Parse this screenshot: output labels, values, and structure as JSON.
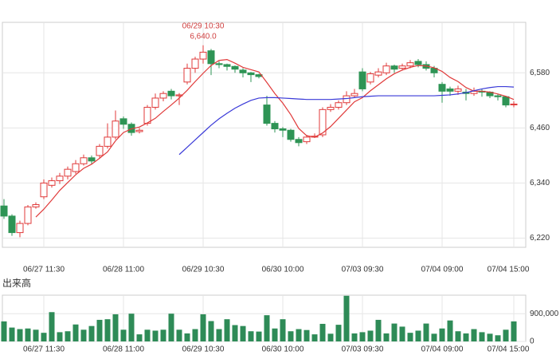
{
  "chart_data": [
    {
      "type": "candlestick",
      "categories": [
        null,
        null,
        null,
        null,
        null,
        "06/27 11:30",
        null,
        null,
        null,
        null,
        null,
        null,
        null,
        null,
        null,
        "06/28 11:00",
        null,
        null,
        null,
        null,
        null,
        null,
        null,
        null,
        null,
        "06/29 10:30",
        null,
        null,
        null,
        null,
        null,
        null,
        null,
        null,
        null,
        "06/30 10:00",
        null,
        null,
        null,
        null,
        null,
        null,
        null,
        null,
        null,
        "07/03 09:30",
        null,
        null,
        null,
        null,
        null,
        null,
        null,
        null,
        null,
        "07/04 09:00",
        null,
        null,
        null,
        null,
        null,
        null,
        null,
        null,
        "07/04 15:00"
      ],
      "open": [
        6290,
        6268,
        6232,
        6252,
        6288,
        6310,
        6335,
        6345,
        6355,
        6365,
        6382,
        6395,
        6400,
        6420,
        6440,
        6480,
        6468,
        6452,
        6470,
        6505,
        6525,
        6540,
        6530,
        6560,
        6590,
        6610,
        6628,
        6600,
        6598,
        6594,
        6586,
        6580,
        6576,
        6510,
        6470,
        6458,
        6455,
        6435,
        6430,
        6440,
        6445,
        6500,
        6505,
        6515,
        6530,
        6582,
        6560,
        6575,
        6580,
        6595,
        6590,
        6595,
        6605,
        6598,
        6590,
        6555,
        6545,
        6540,
        6538,
        6535,
        6540,
        6538,
        6530,
        6528,
        6512
      ],
      "high": [
        6305,
        6272,
        6258,
        6292,
        6298,
        6348,
        6352,
        6362,
        6376,
        6390,
        6402,
        6400,
        6425,
        6470,
        6498,
        6485,
        6472,
        6460,
        6510,
        6535,
        6540,
        6545,
        6536,
        6600,
        6615,
        6640,
        6632,
        6605,
        6600,
        6596,
        6590,
        6582,
        6578,
        6530,
        6475,
        6462,
        6458,
        6440,
        6445,
        6448,
        6505,
        6512,
        6520,
        6540,
        6545,
        6590,
        6582,
        6590,
        6602,
        6598,
        6600,
        6608,
        6610,
        6605,
        6595,
        6560,
        6550,
        6552,
        6545,
        6548,
        6545,
        6540,
        6534,
        6530,
        6518
      ],
      "low": [
        6262,
        6225,
        6222,
        6248,
        6284,
        6305,
        6330,
        6338,
        6348,
        6360,
        6378,
        6380,
        6395,
        6415,
        6435,
        6458,
        6443,
        6448,
        6465,
        6500,
        6518,
        6522,
        6510,
        6555,
        6580,
        6600,
        6575,
        6590,
        6585,
        6580,
        6570,
        6560,
        6568,
        6465,
        6450,
        6440,
        6430,
        6420,
        6425,
        6438,
        6440,
        6495,
        6500,
        6510,
        6525,
        6540,
        6555,
        6570,
        6575,
        6580,
        6585,
        6590,
        6592,
        6585,
        6570,
        6515,
        6530,
        6532,
        6520,
        6530,
        6528,
        6525,
        6520,
        6505,
        6505
      ],
      "close": [
        6268,
        6232,
        6252,
        6288,
        6293,
        6340,
        6345,
        6355,
        6370,
        6382,
        6395,
        6388,
        6420,
        6440,
        6475,
        6468,
        6450,
        6455,
        6505,
        6525,
        6535,
        6530,
        6532,
        6590,
        6610,
        6625,
        6600,
        6598,
        6594,
        6588,
        6580,
        6576,
        6572,
        6470,
        6458,
        6455,
        6435,
        6428,
        6440,
        6442,
        6500,
        6505,
        6515,
        6530,
        6535,
        6545,
        6578,
        6582,
        6595,
        6588,
        6595,
        6602,
        6598,
        6590,
        6580,
        6540,
        6540,
        6545,
        6535,
        6540,
        6538,
        6530,
        6528,
        6510,
        6512
      ],
      "up_color": "#e03a3a",
      "down_color": "#2e9455",
      "series": [
        {
          "color": "#e03a3a",
          "values": [
            null,
            null,
            null,
            null,
            6266,
            6283,
            6303,
            6324,
            6341,
            6358,
            6372,
            6381,
            6394,
            6408,
            6432,
            6450,
            6458,
            6462,
            6471,
            6481,
            6496,
            6510,
            6525,
            6542,
            6561,
            6579,
            6596,
            6607,
            6609,
            6601,
            6592,
            6587,
            6582,
            6559,
            6535,
            6514,
            6489,
            6459,
            6443,
            6440,
            6449,
            6463,
            6481,
            6499,
            6517,
            6526,
            6541,
            6554,
            6567,
            6578,
            6586,
            6592,
            6596,
            6595,
            6591,
            6583,
            6570,
            6561,
            6548,
            6540,
            6540,
            6538,
            6534,
            6529,
            6522
          ]
        },
        {
          "color": "#3a3ad8",
          "values": [
            null,
            null,
            null,
            null,
            null,
            null,
            null,
            null,
            null,
            null,
            null,
            null,
            null,
            null,
            null,
            null,
            null,
            null,
            null,
            null,
            null,
            null,
            6402,
            6418,
            6434,
            6450,
            6466,
            6480,
            6492,
            6503,
            6512,
            6520,
            6525,
            6526,
            6526,
            6525,
            6524,
            6523,
            6522,
            6522,
            6522,
            6522,
            6523,
            6524,
            6526,
            6528,
            6529,
            6530,
            6530,
            6530,
            6530,
            6530,
            6530,
            6530,
            6530,
            6531,
            6532,
            6534,
            6537,
            6541,
            6545,
            6548,
            6550,
            6550,
            6549
          ]
        }
      ],
      "annotation": {
        "text": "06/29 10:30",
        "value": 6640,
        "value_label": "6,640.0",
        "color": "#d04040"
      },
      "ylim": [
        6200,
        6690
      ],
      "yticks": [
        {
          "value": 6220,
          "label": "6,220"
        },
        {
          "value": 6340,
          "label": "6,340"
        },
        {
          "value": 6460,
          "label": "6,460"
        },
        {
          "value": 6580,
          "label": "6,580"
        }
      ],
      "grid": true
    },
    {
      "type": "bar",
      "title": "出来高",
      "color": "#2e8b57",
      "categories": [
        null,
        null,
        null,
        null,
        null,
        "06/27 11:30",
        null,
        null,
        null,
        null,
        null,
        null,
        null,
        null,
        null,
        "06/28 11:00",
        null,
        null,
        null,
        null,
        null,
        null,
        null,
        null,
        null,
        "06/29 10:30",
        null,
        null,
        null,
        null,
        null,
        null,
        null,
        null,
        null,
        "06/30 10:00",
        null,
        null,
        null,
        null,
        null,
        null,
        null,
        null,
        null,
        "07/03 09:30",
        null,
        null,
        null,
        null,
        null,
        null,
        null,
        null,
        null,
        "07/04 09:00",
        null,
        null,
        null,
        null,
        null,
        null,
        null,
        null,
        "07/04 15:00"
      ],
      "values": [
        650000,
        450000,
        400000,
        420000,
        380000,
        280000,
        950000,
        300000,
        330000,
        550000,
        380000,
        500000,
        700000,
        720000,
        880000,
        380000,
        900000,
        230000,
        380000,
        350000,
        380000,
        900000,
        380000,
        260000,
        400000,
        880000,
        660000,
        400000,
        720000,
        530000,
        500000,
        330000,
        320000,
        850000,
        420000,
        720000,
        330000,
        400000,
        370000,
        230000,
        570000,
        250000,
        540000,
        1480000,
        260000,
        300000,
        350000,
        700000,
        260000,
        580000,
        480000,
        280000,
        350000,
        580000,
        250000,
        420000,
        680000,
        330000,
        260000,
        400000,
        300000,
        250000,
        200000,
        380000,
        650000
      ],
      "ylim": [
        0,
        1500000
      ],
      "yticks": [
        0,
        {
          "value": 900000,
          "label": "900,000"
        }
      ],
      "grid": true
    }
  ]
}
